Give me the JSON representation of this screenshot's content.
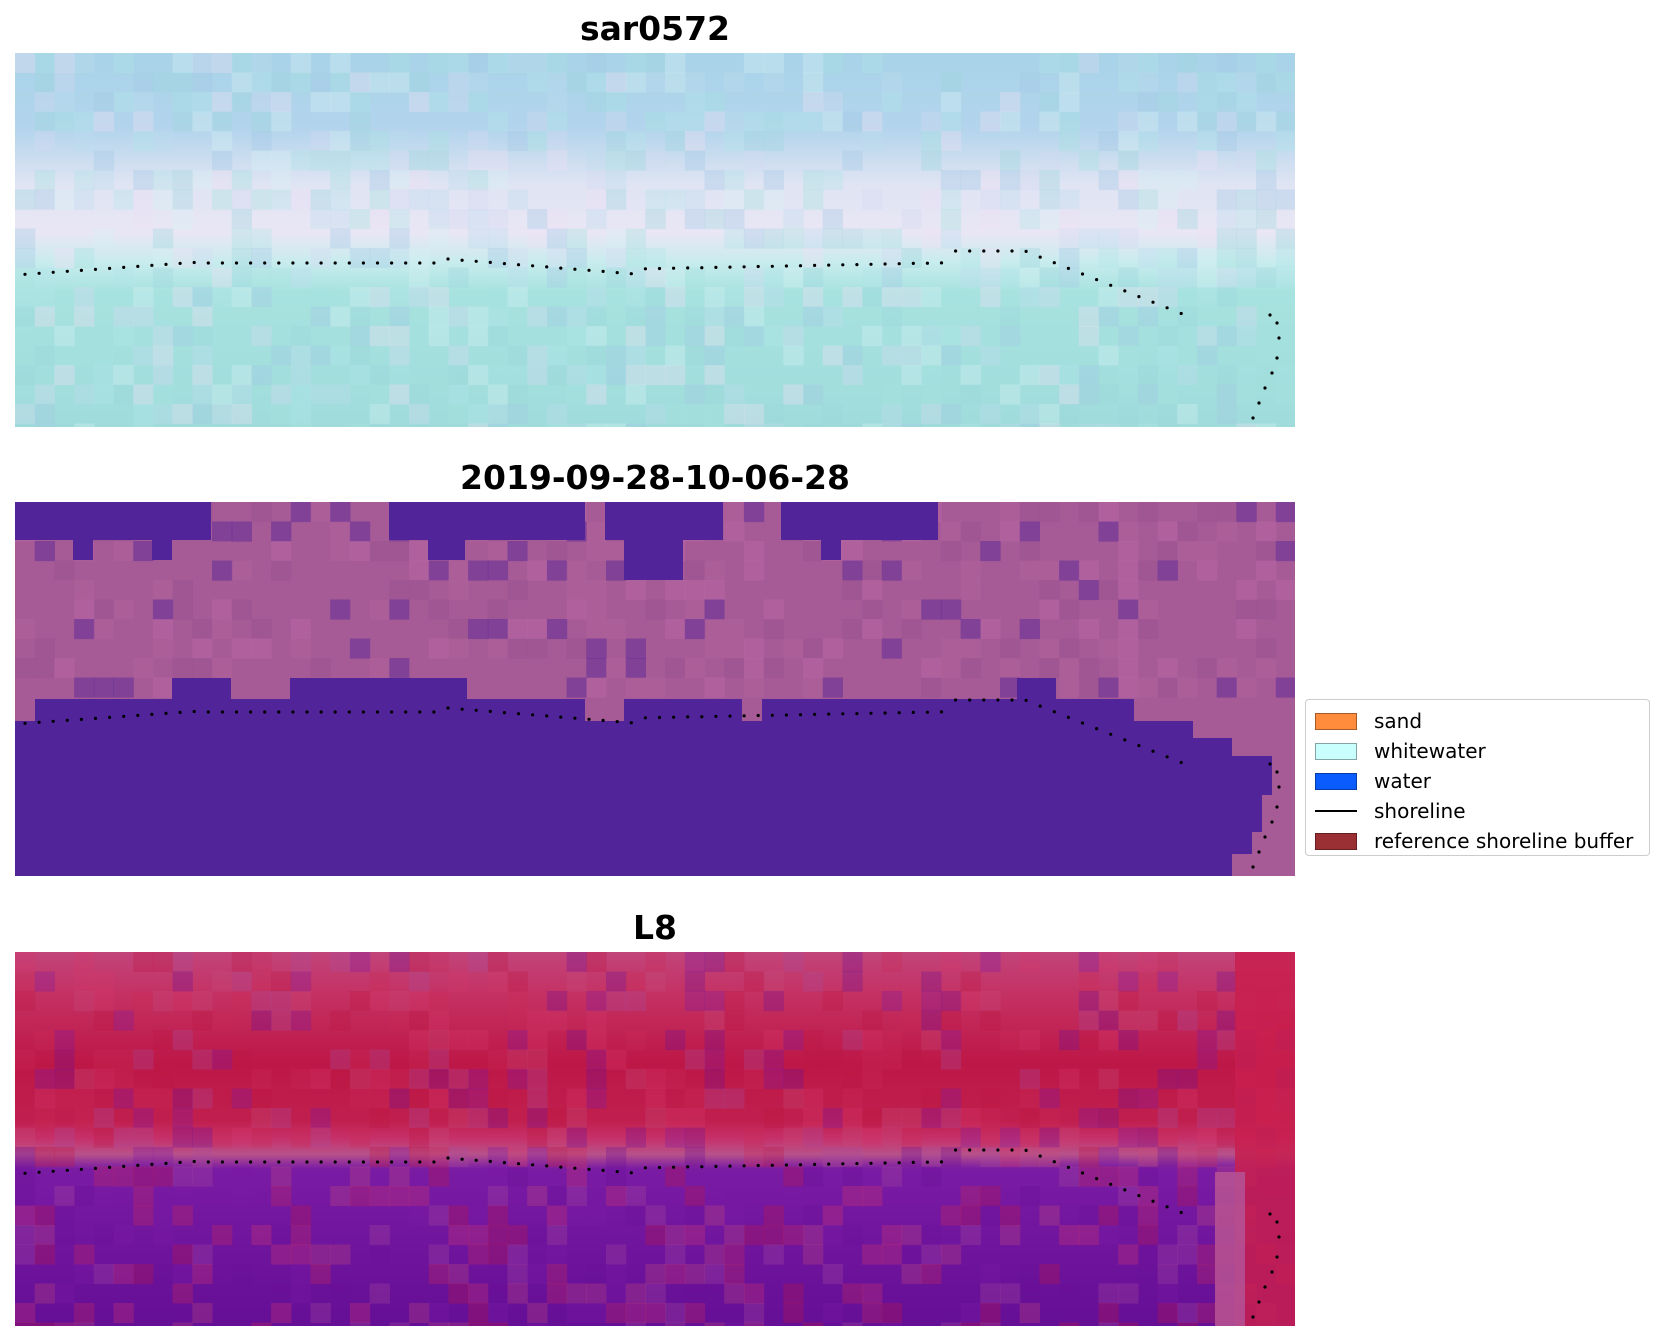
{
  "panels": [
    {
      "title": "sar0572",
      "palette": [
        "#9fd7de",
        "#a6e3df",
        "#b3e4e9",
        "#d7f1f4",
        "#ede0f4",
        "#d3dbf1",
        "#a2c9e4",
        "#bcdcef"
      ]
    },
    {
      "title": "2019-09-28-10-06-28",
      "palette": [
        "#52249a",
        "#a65a96",
        "#b1649c",
        "#9a5190",
        "#bd6aa7"
      ]
    },
    {
      "title": "L8",
      "palette": [
        "#bc1743",
        "#c92a57",
        "#c34d7c",
        "#a84b9b",
        "#6a1299",
        "#7a1ba4",
        "#d4376a"
      ]
    }
  ],
  "legend": {
    "items": [
      {
        "label": "sand",
        "color": "#ff8b3d",
        "kind": "patch"
      },
      {
        "label": "whitewater",
        "color": "#c9fffc",
        "kind": "patch"
      },
      {
        "label": "water",
        "color": "#0a5cff",
        "kind": "patch"
      },
      {
        "label": "shoreline",
        "color": "#000000",
        "kind": "line"
      },
      {
        "label": "reference shoreline buffer",
        "color": "#9b3034",
        "kind": "patch"
      }
    ]
  }
}
